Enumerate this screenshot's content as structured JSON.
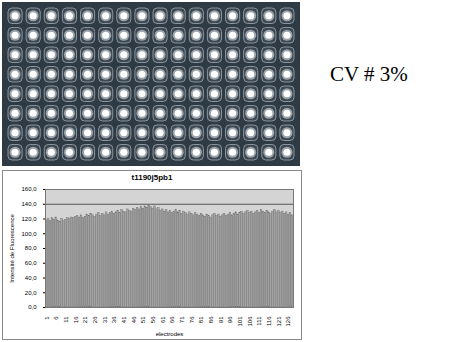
{
  "chart_data": {
    "type": "bar",
    "title": "t1190j5pb1",
    "x_label": "electrodes",
    "y_label": "Intensité de Fluorescence",
    "annotation": "CV # 3%",
    "categories": [
      "1",
      null,
      null,
      null,
      null,
      "6",
      null,
      null,
      null,
      null,
      "11",
      null,
      null,
      null,
      null,
      "16",
      null,
      null,
      null,
      null,
      "21",
      null,
      null,
      null,
      null,
      "26",
      null,
      null,
      null,
      null,
      "31",
      null,
      null,
      null,
      null,
      "36",
      null,
      null,
      null,
      null,
      "41",
      null,
      null,
      null,
      null,
      "46",
      null,
      null,
      null,
      null,
      "51",
      null,
      null,
      null,
      null,
      "56",
      null,
      null,
      null,
      null,
      "61",
      null,
      null,
      null,
      null,
      "66",
      null,
      null,
      null,
      null,
      "71",
      null,
      null,
      null,
      null,
      "76",
      null,
      null,
      null,
      null,
      "81",
      null,
      null,
      null,
      null,
      "86",
      null,
      null,
      null,
      null,
      "91",
      null,
      null,
      null,
      null,
      "96",
      null,
      null,
      null,
      null,
      "101",
      null,
      null,
      null,
      null,
      "106",
      null,
      null,
      null,
      null,
      "111",
      null,
      null,
      null,
      null,
      "116",
      null,
      null,
      null,
      null,
      "121",
      null,
      null,
      null,
      null,
      "126",
      null,
      null
    ],
    "values": [
      118,
      120,
      117,
      121,
      119,
      122,
      118,
      116,
      120,
      117,
      119,
      121,
      120,
      122,
      121,
      123,
      124,
      122,
      125,
      121,
      123,
      126,
      124,
      127,
      125,
      123,
      126,
      128,
      124,
      127,
      125,
      129,
      126,
      128,
      130,
      127,
      129,
      131,
      128,
      132,
      130,
      129,
      133,
      131,
      130,
      134,
      132,
      135,
      133,
      136,
      134,
      137,
      135,
      138,
      136,
      134,
      137,
      133,
      135,
      131,
      133,
      130,
      132,
      129,
      131,
      128,
      130,
      132,
      129,
      131,
      127,
      130,
      128,
      126,
      129,
      127,
      125,
      128,
      126,
      124,
      127,
      125,
      123,
      126,
      124,
      122,
      125,
      127,
      124,
      126,
      123,
      125,
      127,
      124,
      126,
      128,
      125,
      127,
      129,
      126,
      128,
      130,
      127,
      129,
      131,
      128,
      130,
      127,
      129,
      131,
      128,
      132,
      130,
      128,
      131,
      129,
      127,
      130,
      132,
      129,
      131,
      128,
      130,
      127,
      129,
      126,
      128,
      125
    ],
    "color": "#a3a3a3",
    "reference_line": 140,
    "ylim": [
      0,
      160
    ],
    "yticks": [
      {
        "value": 0,
        "label": "0,0"
      },
      {
        "value": 20,
        "label": "20,0"
      },
      {
        "value": 40,
        "label": "40,0"
      },
      {
        "value": 60,
        "label": "60,0"
      },
      {
        "value": 80,
        "label": "80,0"
      },
      {
        "value": 100,
        "label": "100,0"
      },
      {
        "value": 120,
        "label": "120,0"
      },
      {
        "value": 140,
        "label": "140,0"
      },
      {
        "value": 160,
        "label": "160,0"
      }
    ],
    "grid": false
  }
}
